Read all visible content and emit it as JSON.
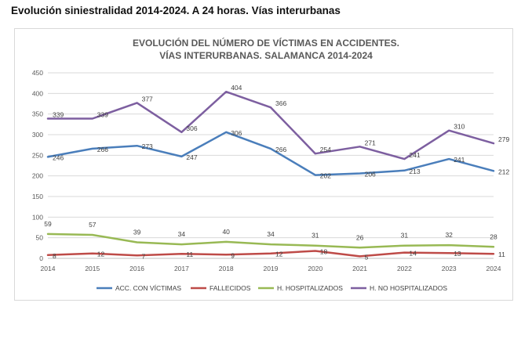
{
  "page": {
    "heading": "Evolución siniestralidad 2014-2024. A 24 horas. Vías interurbanas"
  },
  "colors": {
    "acc": "#4a7ebb",
    "fall": "#be4b48",
    "hosp": "#98b954",
    "nohosp": "#7d5fa0",
    "grid": "#d9d9d9",
    "axis": "#bfbfbf",
    "title": "#595959"
  },
  "chart_data": {
    "type": "line",
    "title_lines": [
      "EVOLUCIÓN DEL NÚMERO DE VÍCTIMAS EN ACCIDENTES.",
      "VÍAS INTERURBANAS. SALAMANCA 2014-2024"
    ],
    "xlabel": "",
    "ylabel": "",
    "ylim": [
      0,
      450
    ],
    "ytick_step": 50,
    "grid": true,
    "legend_position": "bottom",
    "categories": [
      "2014",
      "2015",
      "2016",
      "2017",
      "2018",
      "2019",
      "2020",
      "2021",
      "2022",
      "2023",
      "2024"
    ],
    "series": [
      {
        "key": "acc",
        "name": "ACC. CON VÍCTIMAS",
        "values": [
          246,
          266,
          273,
          247,
          306,
          266,
          202,
          206,
          213,
          241,
          212
        ]
      },
      {
        "key": "fall",
        "name": "FALLECIDOS",
        "values": [
          8,
          12,
          7,
          11,
          9,
          12,
          18,
          5,
          14,
          13,
          11
        ]
      },
      {
        "key": "hosp",
        "name": "H. HOSPITALIZADOS",
        "values": [
          59,
          57,
          39,
          34,
          40,
          34,
          31,
          26,
          31,
          32,
          28
        ]
      },
      {
        "key": "nohosp",
        "name": "H. NO HOSPITALIZADOS",
        "values": [
          339,
          339,
          377,
          306,
          404,
          366,
          254,
          271,
          241,
          310,
          279
        ]
      }
    ]
  }
}
